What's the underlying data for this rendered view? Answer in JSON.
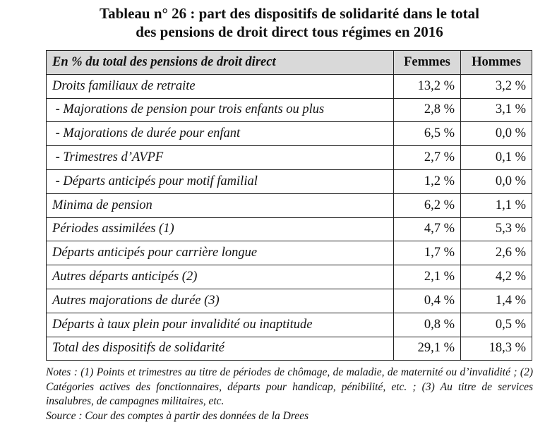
{
  "title": {
    "line1": "Tableau n° 26 : part des dispositifs de solidarité dans le total",
    "line2": "des pensions de droit direct tous régimes en 2016"
  },
  "table": {
    "headers": [
      "En % du total des pensions de droit direct",
      "Femmes",
      "Hommes"
    ],
    "rows": [
      {
        "label": "Droits familiaux de retraite",
        "femmes": "13,2 %",
        "hommes": "3,2 %"
      },
      {
        "label": " - Majorations de pension pour trois enfants ou plus",
        "femmes": "2,8 %",
        "hommes": "3,1 %"
      },
      {
        "label": " - Majorations de durée pour enfant",
        "femmes": "6,5 %",
        "hommes": "0,0 %"
      },
      {
        "label": " - Trimestres d’AVPF",
        "femmes": "2,7 %",
        "hommes": "0,1 %"
      },
      {
        "label": " - Départs anticipés pour motif familial",
        "femmes": "1,2 %",
        "hommes": "0,0 %"
      },
      {
        "label": "Minima de pension",
        "femmes": "6,2 %",
        "hommes": "1,1 %"
      },
      {
        "label": "Périodes assimilées (1)",
        "femmes": "4,7 %",
        "hommes": "5,3 %"
      },
      {
        "label": "Départs anticipés pour carrière longue",
        "femmes": "1,7 %",
        "hommes": "2,6 %"
      },
      {
        "label": "Autres départs anticipés (2)",
        "femmes": "2,1 %",
        "hommes": "4,2 %"
      },
      {
        "label": "Autres majorations de durée (3)",
        "femmes": "0,4 %",
        "hommes": "1,4 %"
      },
      {
        "label": "Départs à taux plein pour invalidité ou inaptitude",
        "femmes": "0,8 %",
        "hommes": "0,5 %"
      },
      {
        "label": "Total des dispositifs de solidarité",
        "femmes": "29,1 %",
        "hommes": "18,3 %"
      }
    ]
  },
  "notes": {
    "text": "Notes : (1) Points et trimestres au titre de périodes de chômage, de maladie, de maternité ou d’invalidité ; (2) Catégories actives des fonctionnaires, départs pour handicap, pénibilité, etc. ; (3) Au titre de services insalubres, de campagnes militaires, etc.",
    "source": "Source : Cour des comptes à partir des données de la Drees"
  }
}
